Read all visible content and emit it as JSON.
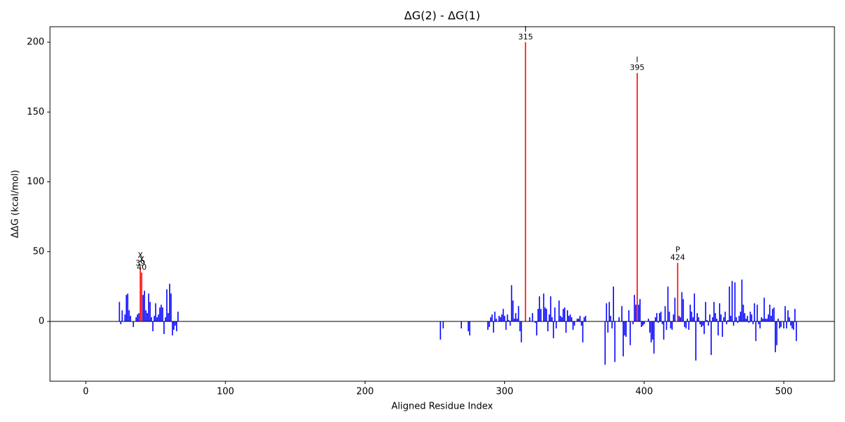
{
  "chart_data": {
    "type": "bar",
    "title": "ΔG(2) - ΔG(1)",
    "x_label": "Aligned Residue Index",
    "y_label": "ΔΔG (kcal/mol)",
    "color": "blue",
    "highlight_color": "red",
    "zero_line": true,
    "xlim": [
      -25.7,
      536.3
    ],
    "ylim": [
      -42.8,
      211.1
    ],
    "xticks": [
      0,
      100,
      200,
      300,
      400,
      500
    ],
    "yticks": [
      0,
      50,
      100,
      150,
      200
    ],
    "annotations": [
      {
        "letter": "X",
        "x": 39
      },
      {
        "letter": "X",
        "x": 40
      },
      {
        "letter": "I",
        "x": 315
      },
      {
        "letter": "I",
        "x": 395
      },
      {
        "letter": "P",
        "x": 424
      }
    ],
    "x": [
      24,
      25,
      26,
      28,
      29,
      30,
      31,
      32,
      34,
      36,
      37,
      38,
      39,
      40,
      41,
      42,
      43,
      44,
      45,
      46,
      47,
      48,
      49,
      50,
      51,
      52,
      53,
      54,
      55,
      56,
      57,
      58,
      59,
      60,
      61,
      62,
      63,
      64,
      65,
      66,
      254,
      256,
      269,
      274,
      275,
      288,
      289,
      290,
      291,
      292,
      293,
      294,
      296,
      297,
      298,
      299,
      300,
      301,
      302,
      303,
      304,
      305,
      306,
      307,
      308,
      309,
      310,
      311,
      312,
      315,
      318,
      320,
      322,
      323,
      324,
      325,
      326,
      328,
      329,
      330,
      331,
      332,
      333,
      334,
      335,
      336,
      337,
      339,
      340,
      341,
      342,
      343,
      344,
      345,
      346,
      347,
      348,
      349,
      350,
      352,
      353,
      354,
      355,
      356,
      357,
      358,
      372,
      373,
      374,
      375,
      376,
      377,
      378,
      379,
      382,
      384,
      385,
      386,
      387,
      389,
      390,
      392,
      393,
      394,
      395,
      396,
      397,
      398,
      399,
      400,
      403,
      404,
      405,
      406,
      407,
      408,
      409,
      410,
      411,
      412,
      413,
      414,
      415,
      416,
      417,
      418,
      419,
      420,
      421,
      422,
      424,
      425,
      426,
      427,
      428,
      429,
      430,
      431,
      432,
      433,
      434,
      435,
      436,
      437,
      438,
      439,
      440,
      441,
      442,
      443,
      444,
      445,
      446,
      447,
      448,
      449,
      450,
      451,
      452,
      453,
      454,
      455,
      456,
      457,
      458,
      459,
      460,
      461,
      462,
      463,
      464,
      465,
      466,
      467,
      468,
      469,
      470,
      471,
      472,
      473,
      474,
      475,
      476,
      477,
      478,
      479,
      480,
      481,
      482,
      483,
      484,
      485,
      486,
      487,
      488,
      489,
      490,
      491,
      492,
      493,
      494,
      495,
      496,
      497,
      498,
      500,
      501,
      502,
      503,
      504,
      505,
      506,
      507,
      508,
      509
    ],
    "values": [
      14,
      -2,
      8,
      5,
      19,
      20,
      8,
      4,
      -4,
      3,
      5,
      6,
      38,
      35,
      19,
      22,
      8,
      6,
      20,
      14,
      3,
      -7,
      4,
      13,
      3,
      5,
      10,
      12,
      10,
      -9,
      3,
      23,
      6,
      27,
      20,
      -10,
      -6,
      -3,
      -7,
      7,
      -13,
      -5,
      -5,
      -7,
      -10,
      -6,
      -4,
      3,
      5,
      -8,
      7,
      2,
      4,
      3,
      5,
      9,
      4,
      -6,
      5,
      1,
      -3,
      26,
      15,
      2,
      6,
      2,
      11,
      -7,
      -15,
      200,
      3,
      6,
      -1,
      -10,
      9,
      18,
      9,
      20,
      10,
      9,
      -7,
      5,
      18,
      3,
      -12,
      10,
      -5,
      15,
      4,
      3,
      9,
      10,
      -8,
      8,
      4,
      5,
      3,
      -6,
      -3,
      2,
      2,
      4,
      -3,
      -15,
      3,
      4,
      -31,
      13,
      -8,
      14,
      4,
      -5,
      25,
      -29,
      3,
      11,
      -25,
      -10,
      -11,
      8,
      -17,
      -2,
      19,
      12,
      178,
      12,
      16,
      -4,
      -3,
      -2,
      2,
      -8,
      -15,
      -13,
      -23,
      3,
      6,
      -1,
      6,
      7,
      -2,
      -13,
      11,
      -6,
      25,
      7,
      -5,
      -6,
      5,
      17,
      42,
      4,
      3,
      21,
      16,
      -4,
      -5,
      2,
      -6,
      12,
      7,
      3,
      20,
      -28,
      6,
      3,
      -2,
      -4,
      -3,
      -9,
      14,
      1,
      -3,
      5,
      -24,
      3,
      14,
      6,
      2,
      -10,
      13,
      5,
      -11,
      3,
      7,
      -2,
      1,
      25,
      4,
      29,
      -3,
      28,
      3,
      -1,
      4,
      7,
      30,
      12,
      6,
      2,
      4,
      -1,
      7,
      5,
      -2,
      13,
      -14,
      12,
      -2,
      -5,
      3,
      2,
      17,
      2,
      2,
      5,
      12,
      4,
      9,
      10,
      -22,
      -17,
      2,
      -5,
      -4,
      -5,
      11,
      -5,
      8,
      3,
      -3,
      -5,
      -6,
      9,
      -14
    ]
  }
}
